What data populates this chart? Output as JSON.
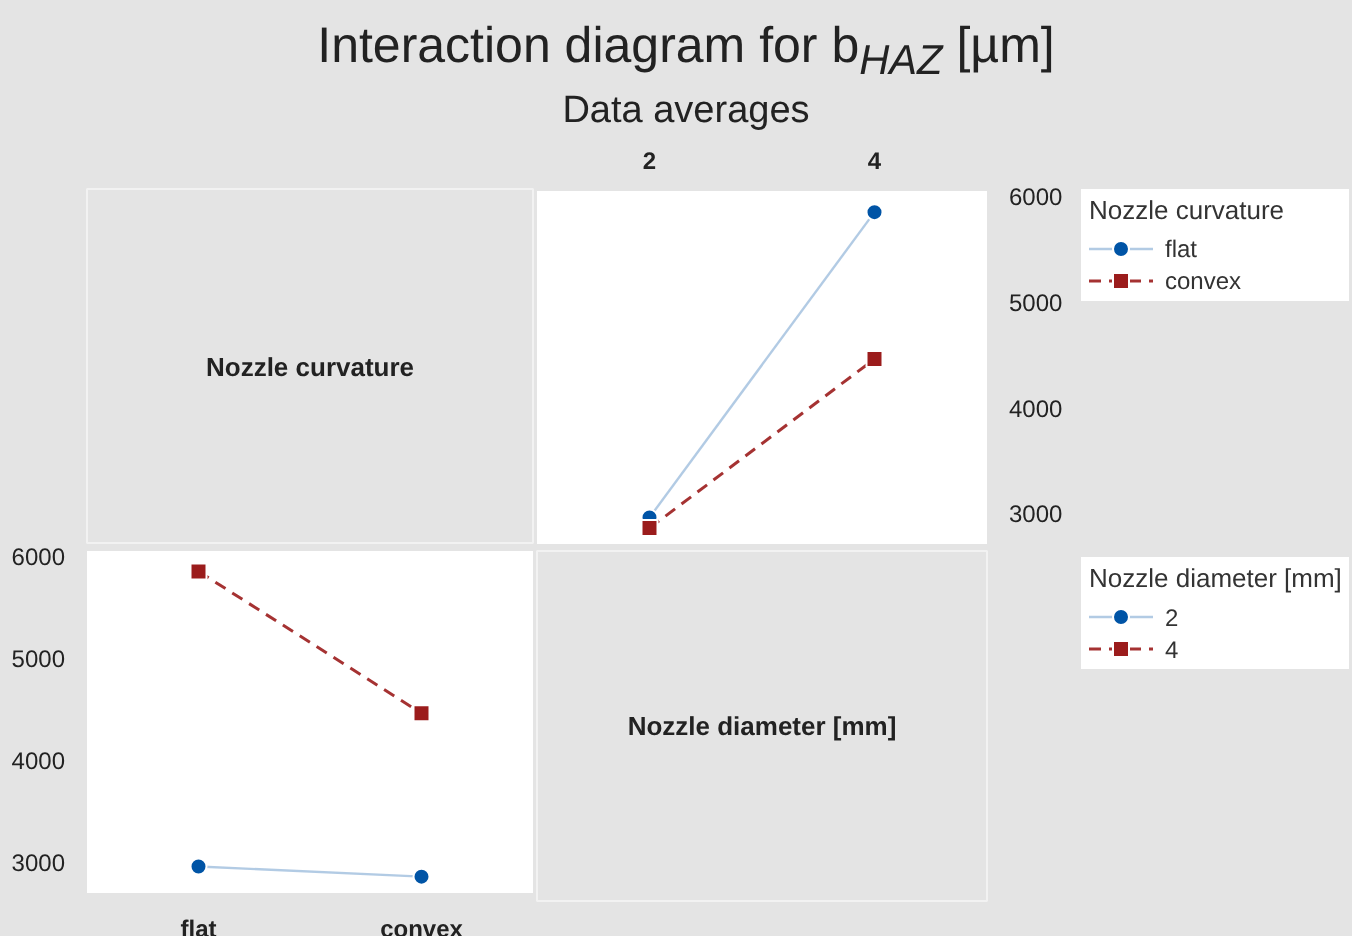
{
  "chart_data": [
    {
      "type": "other",
      "title": "Interaction diagram for b$_{HAZ}$ [µm]",
      "subtitle": "Data averages",
      "annotations": [
        "Nozzle curvature"
      ]
    },
    {
      "type": "line",
      "categories": [
        "2",
        "4"
      ],
      "ylim": [
        2700,
        6050
      ],
      "yticks": [
        3000,
        4000,
        5000,
        6000
      ],
      "legend": "right",
      "legend_title": "Nozzle curvature",
      "series": [
        {
          "name": "flat",
          "color": "#0054a6",
          "values": [
            2960,
            5850
          ],
          "marker": "circle",
          "line_style": "solid"
        },
        {
          "name": "convex",
          "color": "#9b1c1c",
          "values": [
            2860,
            4460
          ],
          "marker": "square",
          "line_style": "dashed"
        }
      ]
    },
    {
      "type": "line",
      "categories": [
        "flat",
        "convex"
      ],
      "ylim": [
        2700,
        6050
      ],
      "yticks": [
        3000,
        4000,
        5000,
        6000
      ],
      "legend": "right",
      "legend_title": "Nozzle diameter [mm]",
      "series": [
        {
          "name": "2",
          "color": "#0054a6",
          "values": [
            2960,
            2860
          ],
          "marker": "circle",
          "line_style": "solid"
        },
        {
          "name": "4",
          "color": "#9b1c1c",
          "values": [
            5850,
            4460
          ],
          "marker": "square",
          "line_style": "dashed"
        }
      ]
    },
    {
      "type": "other",
      "annotations": [
        "Nozzle diameter [mm]"
      ]
    }
  ]
}
